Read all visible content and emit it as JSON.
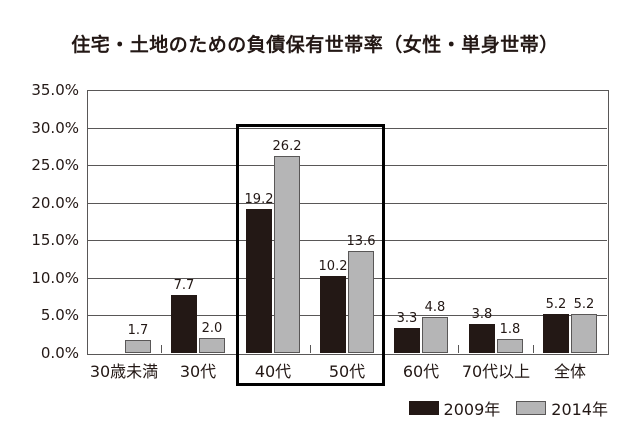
{
  "chart_data": {
    "type": "bar",
    "title": "住宅・土地のための負債保有世帯率（女性・単身世帯）",
    "xlabel": "",
    "ylabel": "",
    "categories": [
      "30歳未満",
      "30代",
      "40代",
      "50代",
      "60代",
      "70代以上",
      "全体"
    ],
    "series": [
      {
        "name": "2009年",
        "color": "#231815",
        "border_color": "#231815",
        "values": [
          null,
          7.7,
          19.2,
          10.2,
          3.3,
          3.8,
          5.2
        ]
      },
      {
        "name": "2014年",
        "color": "#b5b5b6",
        "border_color": "#595757",
        "values": [
          1.7,
          2.0,
          26.2,
          13.6,
          4.8,
          1.8,
          5.2
        ]
      }
    ],
    "ylim": [
      0,
      35
    ],
    "ytick_step": 5,
    "ytick_labels": [
      "0.0%",
      "5.0%",
      "10.0%",
      "15.0%",
      "20.0%",
      "25.0%",
      "30.0%",
      "35.0%"
    ],
    "grid": true,
    "legend_position": "bottom-right",
    "highlight": {
      "label": "40代・50代",
      "from_index": 2,
      "to_index": 3,
      "border_color": "#000000"
    },
    "colors": {
      "grid": "#595757",
      "text": "#231815",
      "background": "#ffffff"
    }
  }
}
